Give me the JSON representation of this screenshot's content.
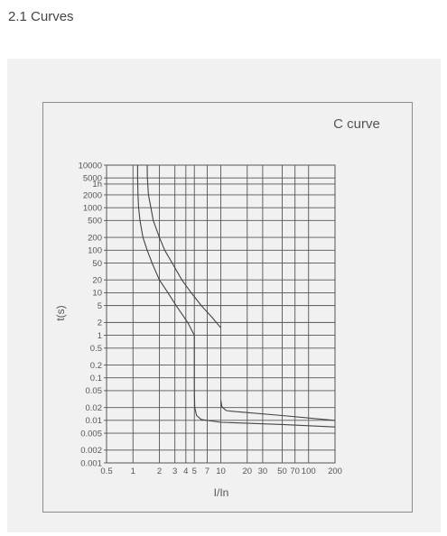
{
  "header": {
    "section_title": "2.1 Curves"
  },
  "colors": {
    "panel": "#f1f1f1",
    "frame": "#8c8c8c",
    "grid": "#555555",
    "curve": "#444444",
    "text": "#555555"
  },
  "chart_data": {
    "type": "line",
    "title": "C curve",
    "xlabel": "I/In",
    "ylabel": "t(s)",
    "x_scale": "log",
    "y_scale": "log",
    "xlim": [
      0.5,
      200
    ],
    "ylim": [
      0.001,
      10000
    ],
    "grid": true,
    "x_ticks": [
      {
        "v": 0.5,
        "label": "0.5"
      },
      {
        "v": 1,
        "label": "1"
      },
      {
        "v": 2,
        "label": "2"
      },
      {
        "v": 3,
        "label": "3"
      },
      {
        "v": 4,
        "label": "4"
      },
      {
        "v": 5,
        "label": "5"
      },
      {
        "v": 7,
        "label": "7"
      },
      {
        "v": 10,
        "label": "10"
      },
      {
        "v": 20,
        "label": "20"
      },
      {
        "v": 30,
        "label": "30"
      },
      {
        "v": 50,
        "label": "50"
      },
      {
        "v": 70,
        "label": "70"
      },
      {
        "v": 100,
        "label": "100"
      },
      {
        "v": 200,
        "label": "200"
      }
    ],
    "y_ticks": [
      {
        "v": 10000,
        "label": "10000"
      },
      {
        "v": 5000,
        "label": "5000"
      },
      {
        "v": 3600,
        "label": "1h"
      },
      {
        "v": 2000,
        "label": "2000"
      },
      {
        "v": 1000,
        "label": "1000"
      },
      {
        "v": 500,
        "label": "500"
      },
      {
        "v": 200,
        "label": "200"
      },
      {
        "v": 100,
        "label": "100"
      },
      {
        "v": 50,
        "label": "50"
      },
      {
        "v": 20,
        "label": "20"
      },
      {
        "v": 10,
        "label": "10"
      },
      {
        "v": 5,
        "label": "5"
      },
      {
        "v": 2,
        "label": "2"
      },
      {
        "v": 1,
        "label": "1"
      },
      {
        "v": 0.5,
        "label": "0.5"
      },
      {
        "v": 0.2,
        "label": "0.2"
      },
      {
        "v": 0.1,
        "label": "0.1"
      },
      {
        "v": 0.05,
        "label": "0.05"
      },
      {
        "v": 0.02,
        "label": "0.02"
      },
      {
        "v": 0.01,
        "label": "0.01"
      },
      {
        "v": 0.005,
        "label": "0.005"
      },
      {
        "v": 0.002,
        "label": "0.002"
      },
      {
        "v": 0.001,
        "label": "0.001"
      }
    ],
    "series": [
      {
        "points": [
          [
            1.13,
            10000
          ],
          [
            1.13,
            5000
          ],
          [
            1.14,
            2000
          ],
          [
            1.16,
            1000
          ],
          [
            1.2,
            500
          ],
          [
            1.3,
            200
          ],
          [
            1.45,
            100
          ],
          [
            1.65,
            50
          ],
          [
            2.0,
            20
          ],
          [
            2.5,
            10
          ],
          [
            3.1,
            5
          ],
          [
            4.2,
            2
          ],
          [
            5.0,
            1
          ],
          [
            5.0,
            0.05
          ],
          [
            5.05,
            0.02
          ],
          [
            5.3,
            0.013
          ],
          [
            6.0,
            0.0105
          ],
          [
            10,
            0.009
          ],
          [
            50,
            0.008
          ],
          [
            200,
            0.007
          ]
        ]
      },
      {
        "points": [
          [
            1.45,
            10000
          ],
          [
            1.46,
            5000
          ],
          [
            1.5,
            2000
          ],
          [
            1.6,
            1000
          ],
          [
            1.7,
            500
          ],
          [
            2.0,
            200
          ],
          [
            2.3,
            100
          ],
          [
            2.8,
            50
          ],
          [
            3.6,
            20
          ],
          [
            4.6,
            10
          ],
          [
            6.0,
            5
          ],
          [
            8.0,
            2.6
          ],
          [
            10.0,
            1.5
          ]
        ]
      },
      {
        "points": [
          [
            10.0,
            0.03
          ],
          [
            10.3,
            0.021
          ],
          [
            11.5,
            0.017
          ],
          [
            15,
            0.016
          ],
          [
            50,
            0.013
          ],
          [
            200,
            0.01
          ]
        ]
      }
    ]
  }
}
